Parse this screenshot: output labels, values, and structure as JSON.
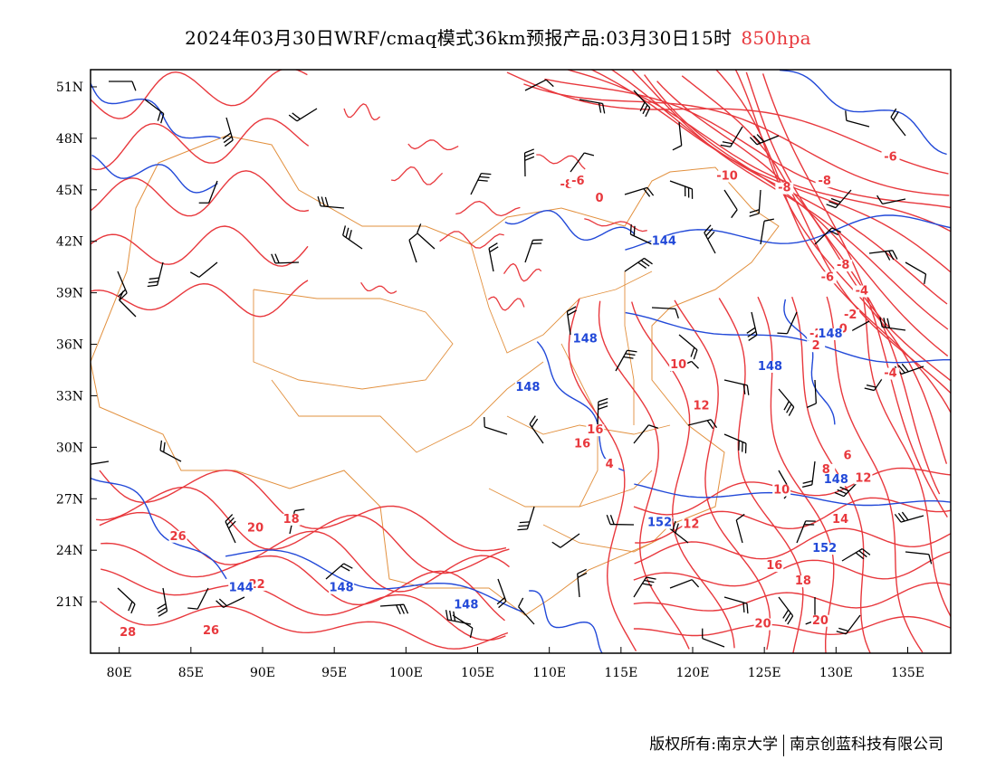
{
  "header": {
    "title": "2024年03月30日WRF/cmaq模式36km预报产品:03月30日15时",
    "level": "850hpa"
  },
  "map": {
    "lon_range": [
      78,
      138
    ],
    "lat_range": [
      18,
      52
    ],
    "lon_ticks": [
      "80E",
      "85E",
      "90E",
      "95E",
      "100E",
      "105E",
      "110E",
      "115E",
      "120E",
      "125E",
      "130E",
      "135E"
    ],
    "lat_ticks": [
      "51N",
      "48N",
      "45N",
      "42N",
      "39N",
      "36N",
      "33N",
      "30N",
      "27N",
      "24N",
      "21N"
    ],
    "temperature_color": "#e8383d",
    "height_color": "#2249d8",
    "boundary_color": "#e2903e",
    "wind_barb_color": "#000000",
    "temperature_labels": [
      {
        "text": "-8",
        "lon": 111.2,
        "lat": 45.1
      },
      {
        "text": "-6",
        "lon": 112.0,
        "lat": 45.3
      },
      {
        "text": "0",
        "lon": 113.5,
        "lat": 44.3
      },
      {
        "text": "-10",
        "lon": 122.4,
        "lat": 45.6
      },
      {
        "text": "-8",
        "lon": 126.4,
        "lat": 44.9
      },
      {
        "text": "-8",
        "lon": 129.2,
        "lat": 45.3
      },
      {
        "text": "-6",
        "lon": 133.8,
        "lat": 46.7
      },
      {
        "text": "-8",
        "lon": 130.5,
        "lat": 40.4
      },
      {
        "text": "-6",
        "lon": 129.4,
        "lat": 39.7
      },
      {
        "text": "-4",
        "lon": 131.8,
        "lat": 38.9
      },
      {
        "text": "-2",
        "lon": 131.0,
        "lat": 37.5
      },
      {
        "text": "-2",
        "lon": 128.6,
        "lat": 36.4
      },
      {
        "text": "0",
        "lon": 130.5,
        "lat": 36.7
      },
      {
        "text": "2",
        "lon": 128.6,
        "lat": 35.7
      },
      {
        "text": "-4",
        "lon": 133.8,
        "lat": 34.1
      },
      {
        "text": "10",
        "lon": 119.0,
        "lat": 34.6
      },
      {
        "text": "12",
        "lon": 120.6,
        "lat": 32.2
      },
      {
        "text": "16",
        "lon": 113.2,
        "lat": 30.8
      },
      {
        "text": "16",
        "lon": 112.3,
        "lat": 30.0
      },
      {
        "text": "4",
        "lon": 114.2,
        "lat": 28.8
      },
      {
        "text": "6",
        "lon": 130.8,
        "lat": 29.3
      },
      {
        "text": "8",
        "lon": 129.3,
        "lat": 28.5
      },
      {
        "text": "12",
        "lon": 131.9,
        "lat": 28.0
      },
      {
        "text": "10",
        "lon": 126.2,
        "lat": 27.3
      },
      {
        "text": "14",
        "lon": 130.3,
        "lat": 25.6
      },
      {
        "text": "12",
        "lon": 119.9,
        "lat": 25.3
      },
      {
        "text": "16",
        "lon": 125.7,
        "lat": 22.9
      },
      {
        "text": "18",
        "lon": 127.7,
        "lat": 22.0
      },
      {
        "text": "20",
        "lon": 124.9,
        "lat": 19.5
      },
      {
        "text": "20",
        "lon": 128.9,
        "lat": 19.7
      },
      {
        "text": "18",
        "lon": 92.0,
        "lat": 25.6
      },
      {
        "text": "20",
        "lon": 89.5,
        "lat": 25.1
      },
      {
        "text": "26",
        "lon": 84.1,
        "lat": 24.6
      },
      {
        "text": "22",
        "lon": 89.6,
        "lat": 21.8
      },
      {
        "text": "28",
        "lon": 80.6,
        "lat": 19.0
      },
      {
        "text": "26",
        "lon": 86.4,
        "lat": 19.1
      }
    ],
    "height_labels": [
      {
        "text": "144",
        "lon": 118.0,
        "lat": 41.8
      },
      {
        "text": "148",
        "lon": 112.5,
        "lat": 36.1
      },
      {
        "text": "148",
        "lon": 108.5,
        "lat": 33.3
      },
      {
        "text": "148",
        "lon": 125.4,
        "lat": 34.5
      },
      {
        "text": "148",
        "lon": 129.6,
        "lat": 36.4
      },
      {
        "text": "148",
        "lon": 130.0,
        "lat": 27.9
      },
      {
        "text": "152",
        "lon": 117.7,
        "lat": 25.4
      },
      {
        "text": "152",
        "lon": 129.2,
        "lat": 23.9
      },
      {
        "text": "148",
        "lon": 95.5,
        "lat": 21.6
      },
      {
        "text": "148",
        "lon": 104.2,
        "lat": 20.6
      },
      {
        "text": "144",
        "lon": 88.5,
        "lat": 21.6
      }
    ]
  },
  "footer": {
    "copyright": "版权所有:南京大学",
    "company": "南京创蓝科技有限公司"
  }
}
